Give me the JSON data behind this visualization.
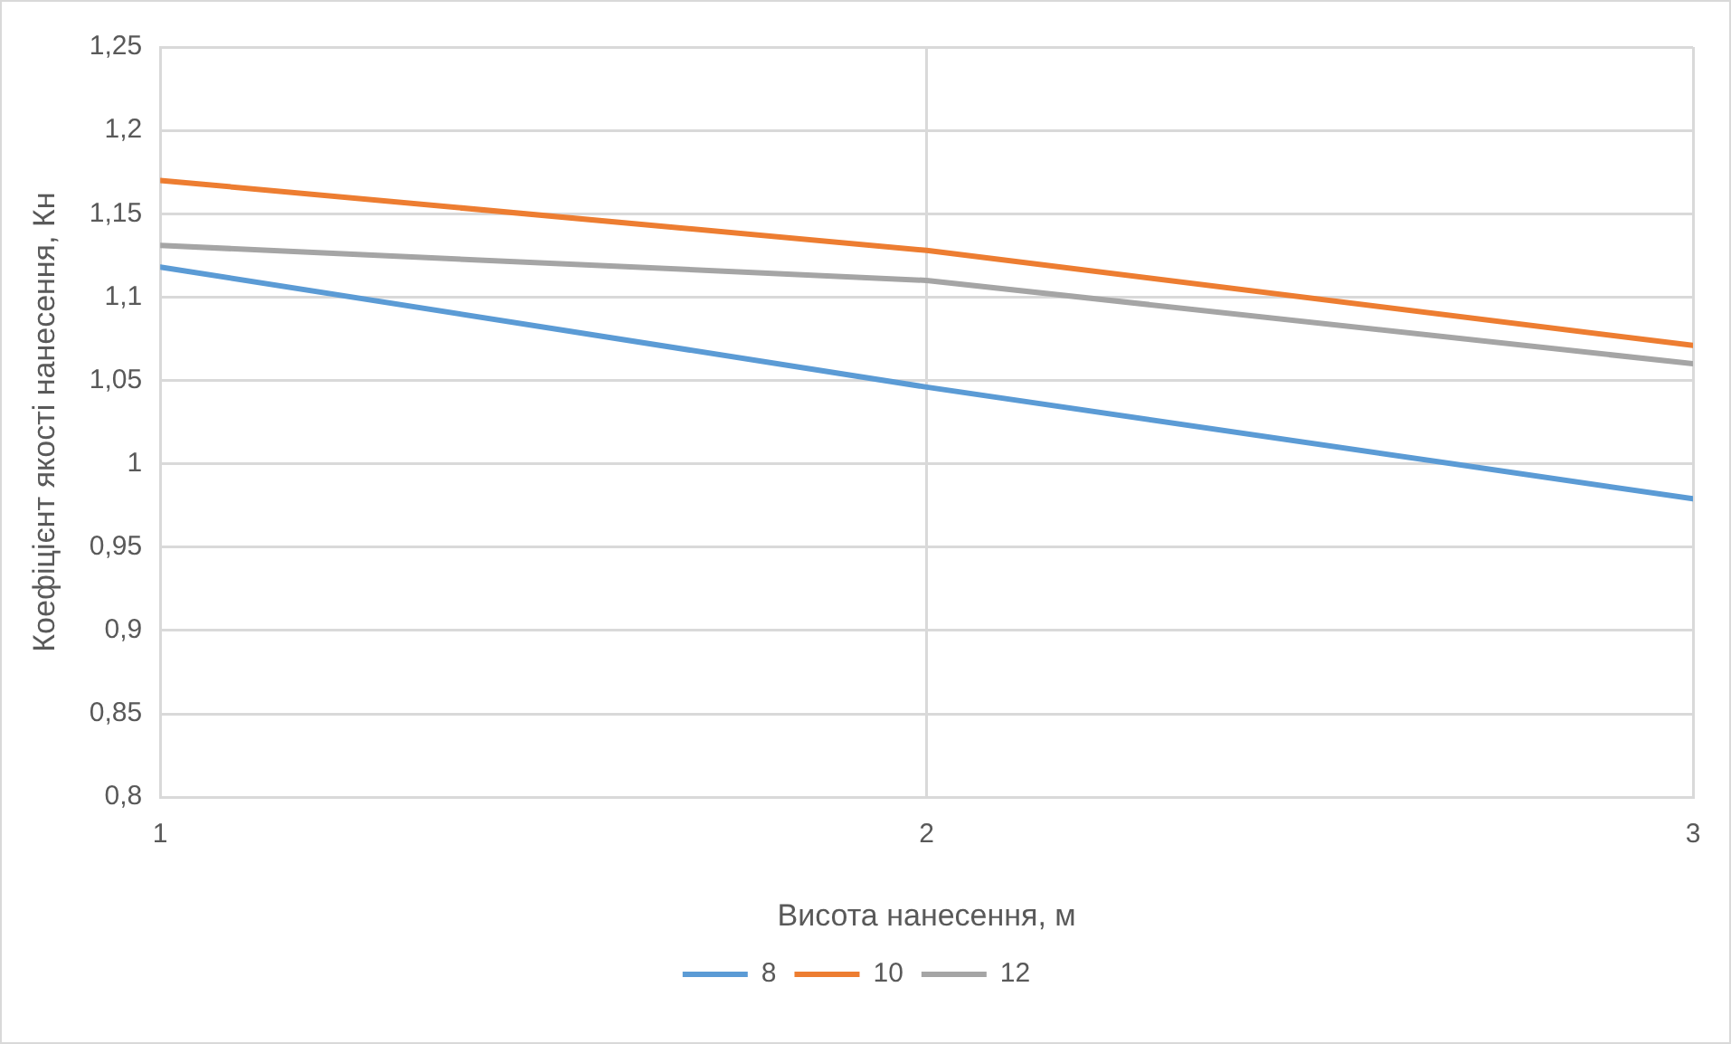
{
  "chart_data": {
    "type": "line",
    "xlabel": "Висота нанесення, м",
    "ylabel": "Коефіцієнт якості нанесення, Кн",
    "x": [
      1,
      2,
      3
    ],
    "xlim": [
      1,
      3
    ],
    "xticks": [
      1,
      2,
      3
    ],
    "ylim": [
      0.8,
      1.25
    ],
    "yticks": [
      {
        "value": 0.8,
        "label": "0,8"
      },
      {
        "value": 0.85,
        "label": "0,85"
      },
      {
        "value": 0.9,
        "label": "0,9"
      },
      {
        "value": 0.95,
        "label": "0,95"
      },
      {
        "value": 1,
        "label": "1"
      },
      {
        "value": 1.05,
        "label": "1,05"
      },
      {
        "value": 1.1,
        "label": "1,1"
      },
      {
        "value": 1.15,
        "label": "1,15"
      },
      {
        "value": 1.2,
        "label": "1,2"
      },
      {
        "value": 1.25,
        "label": "1,25"
      }
    ],
    "series": [
      {
        "name": "8",
        "color": "#5b9bd5",
        "values": [
          1.118,
          1.046,
          0.979
        ]
      },
      {
        "name": "10",
        "color": "#ed7d31",
        "values": [
          1.17,
          1.128,
          1.071
        ]
      },
      {
        "name": "12",
        "color": "#a5a5a5",
        "values": [
          1.131,
          1.11,
          1.06
        ]
      }
    ],
    "grid": true,
    "legend": "bottom",
    "marker": "none",
    "line_style": "solid"
  }
}
